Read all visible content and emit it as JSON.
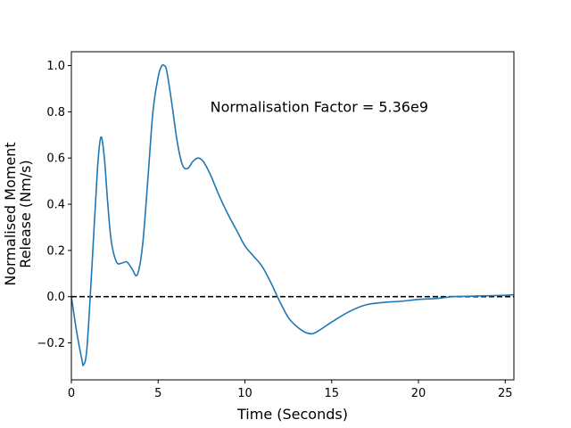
{
  "chart_data": {
    "type": "line",
    "title": "",
    "xlabel": "Time (Seconds)",
    "ylabel_lines": [
      "Normalised Moment",
      "Release (Nm/s)"
    ],
    "xlim": [
      0,
      25.5
    ],
    "ylim": [
      -0.36,
      1.06
    ],
    "xticks": [
      0,
      5,
      10,
      15,
      20,
      25
    ],
    "yticks": [
      -0.2,
      0.0,
      0.2,
      0.4,
      0.6,
      0.8,
      1.0
    ],
    "xtick_labels": [
      "0",
      "5",
      "10",
      "15",
      "20",
      "25"
    ],
    "ytick_labels": [
      "−0.2",
      "0.0",
      "0.2",
      "0.4",
      "0.6",
      "0.8",
      "1.0"
    ],
    "grid": false,
    "annotation": {
      "text": "Normalisation Factor = 5.36e9",
      "x": 8.0,
      "y": 0.8
    },
    "reference_line": {
      "y": 0.0,
      "style": "dashed",
      "color": "#000000"
    },
    "series": [
      {
        "color": "#1f77b4",
        "x": [
          0,
          0.3,
          0.6,
          0.7,
          0.9,
          1.2,
          1.5,
          1.7,
          1.9,
          2.1,
          2.3,
          2.6,
          2.9,
          3.2,
          3.5,
          3.8,
          4.1,
          4.4,
          4.7,
          5.0,
          5.2,
          5.35,
          5.5,
          5.8,
          6.1,
          6.4,
          6.7,
          7.0,
          7.3,
          7.6,
          8.0,
          8.5,
          9.0,
          9.5,
          10.0,
          10.5,
          11.0,
          11.5,
          12.0,
          12.5,
          13.0,
          13.5,
          13.9,
          14.3,
          15.0,
          16.0,
          17.0,
          18.0,
          19.0,
          20.0,
          21.0,
          22.0,
          23.0,
          24.0,
          25.0,
          25.5
        ],
        "y": [
          0.0,
          -0.15,
          -0.27,
          -0.295,
          -0.22,
          0.15,
          0.55,
          0.69,
          0.6,
          0.4,
          0.24,
          0.15,
          0.145,
          0.15,
          0.12,
          0.095,
          0.22,
          0.5,
          0.8,
          0.95,
          0.998,
          1.0,
          0.975,
          0.83,
          0.67,
          0.57,
          0.555,
          0.585,
          0.6,
          0.585,
          0.53,
          0.44,
          0.36,
          0.29,
          0.22,
          0.175,
          0.13,
          0.06,
          -0.02,
          -0.09,
          -0.13,
          -0.155,
          -0.16,
          -0.145,
          -0.11,
          -0.065,
          -0.035,
          -0.025,
          -0.02,
          -0.012,
          -0.008,
          0.0,
          0.002,
          0.004,
          0.006,
          0.008
        ]
      }
    ]
  }
}
